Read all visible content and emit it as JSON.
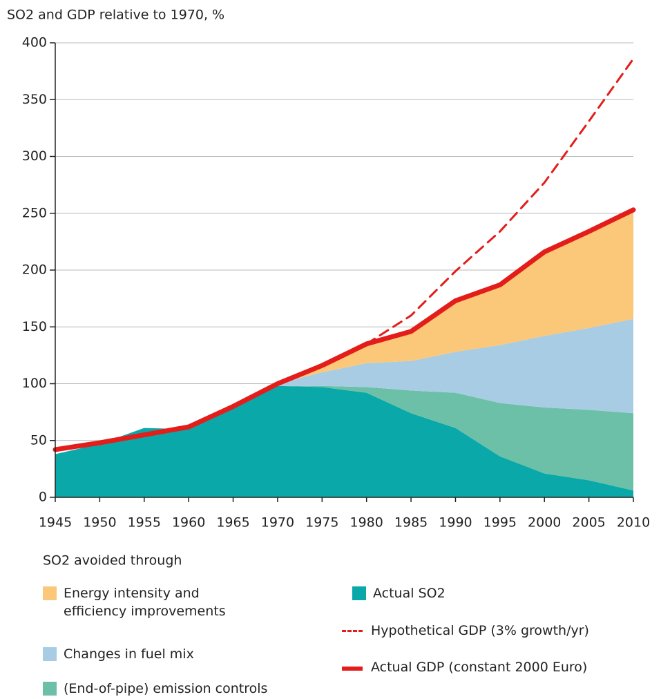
{
  "chart_data": {
    "type": "area",
    "title": "SO2 and GDP relative to 1970, %",
    "legend_title": "SO2 avoided through",
    "x": [
      1945,
      1950,
      1955,
      1960,
      1965,
      1970,
      1975,
      1980,
      1985,
      1990,
      1995,
      2000,
      2005,
      2010
    ],
    "xlim": [
      1945,
      2010
    ],
    "xticks": [
      1945,
      1950,
      1955,
      1960,
      1965,
      1970,
      1975,
      1980,
      1985,
      1990,
      1995,
      2000,
      2005,
      2010
    ],
    "ylim": [
      0,
      400
    ],
    "yticks": [
      0,
      50,
      100,
      150,
      200,
      250,
      300,
      350,
      400
    ],
    "grid": true,
    "series": [
      {
        "name": "Actual SO2",
        "type": "area",
        "color": "#0aa8a8",
        "values": [
          38,
          47,
          61,
          60,
          78,
          98,
          97,
          92,
          74,
          61,
          36,
          21,
          15,
          6
        ]
      },
      {
        "name": "(End-of-pipe) emission controls",
        "type": "area",
        "color": "#6cc0a8",
        "values": [
          0,
          0,
          0,
          0,
          0,
          0,
          1,
          5,
          20,
          31,
          47,
          58,
          62,
          68
        ]
      },
      {
        "name": "Changes in fuel mix",
        "type": "area",
        "color": "#a8cce4",
        "values": [
          0,
          0,
          0,
          0,
          0,
          2,
          12,
          21,
          26,
          36,
          51,
          63,
          72,
          83
        ]
      },
      {
        "name": "Energy intensity and efficiency improvements",
        "type": "area",
        "color": "#fbc87a",
        "values": [
          0,
          0,
          0,
          0,
          0,
          0,
          6,
          17,
          26,
          45,
          53,
          74,
          85,
          96
        ]
      },
      {
        "name": "Hypothetical GDP (3% growth/yr)",
        "type": "line",
        "dashed": true,
        "color": "#e31d1a",
        "values": [
          null,
          null,
          null,
          null,
          null,
          null,
          null,
          135,
          160,
          199,
          234,
          277,
          331,
          386
        ]
      },
      {
        "name": "Actual GDP (constant 2000 Euro)",
        "type": "line",
        "dashed": false,
        "color": "#e31d1a",
        "values": [
          42,
          48,
          55,
          62,
          80,
          100,
          116,
          135,
          146,
          173,
          187,
          216,
          234,
          253
        ]
      }
    ]
  }
}
